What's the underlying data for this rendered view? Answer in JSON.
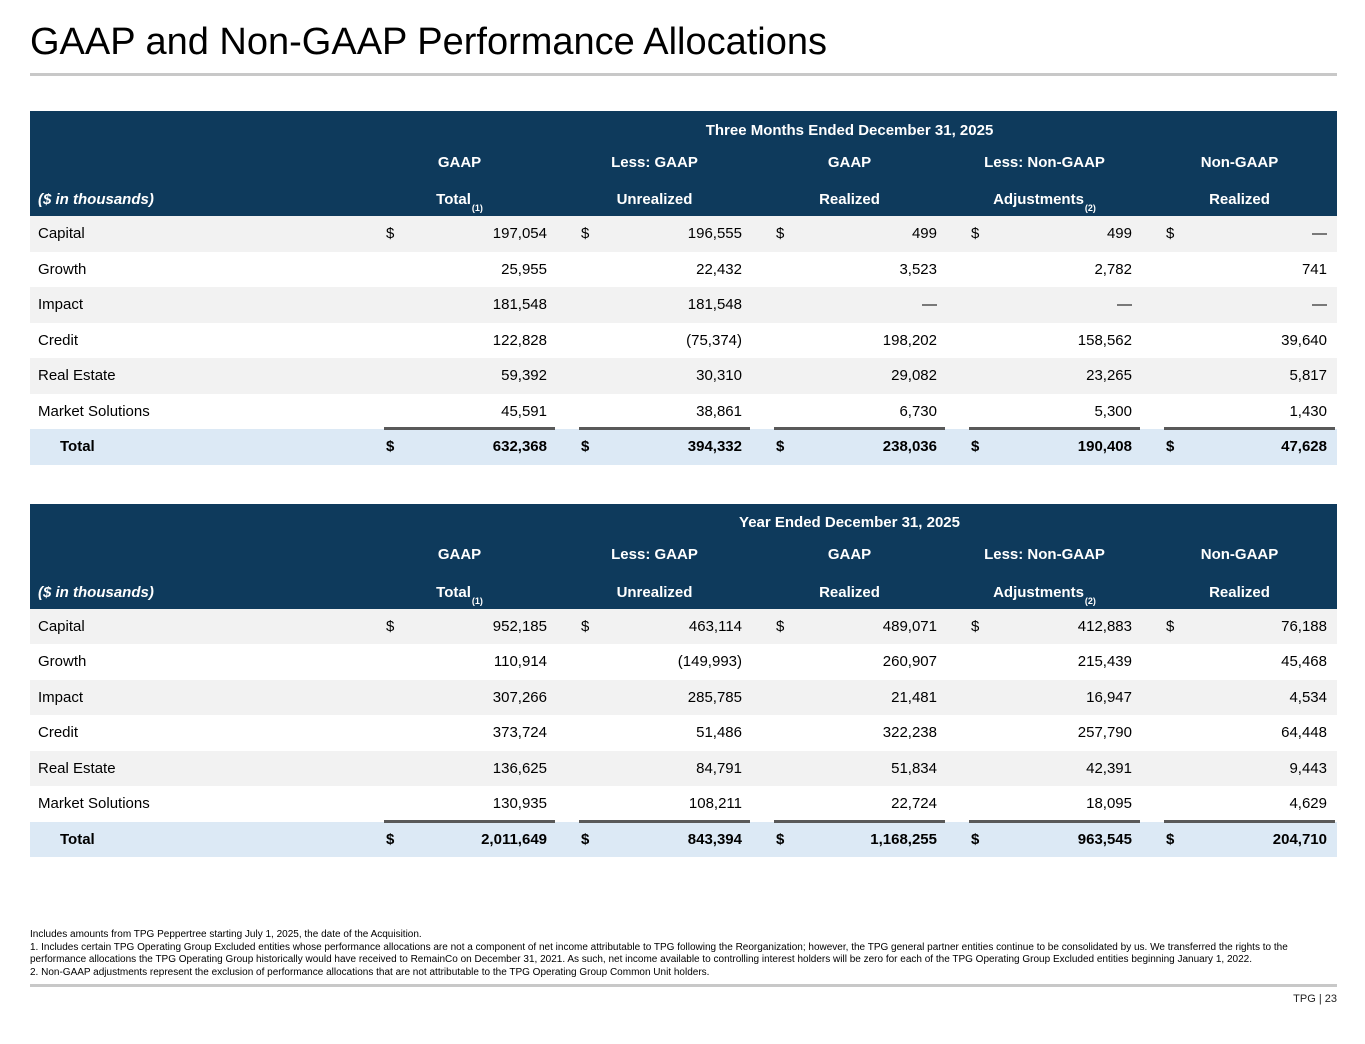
{
  "slide": {
    "title": "GAAP and Non-GAAP Performance Allocations",
    "page_label": "TPG | 23"
  },
  "theme": {
    "header_bg": "#0e3a5c",
    "total_row_bg": "#dce9f5",
    "alt_row_bg": "#f2f2f2",
    "rule_gray": "#c8c8c8",
    "sum_rule": "#595959"
  },
  "columns": {
    "label_header": "($ in thousands)",
    "groups": [
      {
        "line1": "GAAP",
        "line2": "Total",
        "sup": "(1)"
      },
      {
        "line1": "Less: GAAP",
        "line2": "Unrealized",
        "sup": ""
      },
      {
        "line1": "GAAP",
        "line2": "Realized",
        "sup": ""
      },
      {
        "line1": "Less: Non-GAAP",
        "line2": "Adjustments",
        "sup": "(2)"
      },
      {
        "line1": "Non-GAAP",
        "line2": "Realized",
        "sup": ""
      }
    ]
  },
  "tables": [
    {
      "period": "Three Months Ended December 31, 2025",
      "rows": [
        {
          "label": "Capital",
          "dollar": true,
          "values": [
            "197,054",
            "196,555",
            "499",
            "499",
            "—"
          ]
        },
        {
          "label": "Growth",
          "dollar": false,
          "values": [
            "25,955",
            "22,432",
            "3,523",
            "2,782",
            "741"
          ]
        },
        {
          "label": "Impact",
          "dollar": false,
          "values": [
            "181,548",
            "181,548",
            "—",
            "—",
            "—"
          ]
        },
        {
          "label": "Credit",
          "dollar": false,
          "values": [
            "122,828",
            "(75,374)",
            "198,202",
            "158,562",
            "39,640"
          ]
        },
        {
          "label": "Real Estate",
          "dollar": false,
          "values": [
            "59,392",
            "30,310",
            "29,082",
            "23,265",
            "5,817"
          ]
        },
        {
          "label": "Market Solutions",
          "dollar": false,
          "values": [
            "45,591",
            "38,861",
            "6,730",
            "5,300",
            "1,430"
          ]
        }
      ],
      "total": {
        "label": "Total",
        "dollar": true,
        "values": [
          "632,368",
          "394,332",
          "238,036",
          "190,408",
          "47,628"
        ]
      }
    },
    {
      "period": "Year Ended December 31, 2025",
      "rows": [
        {
          "label": "Capital",
          "dollar": true,
          "values": [
            "952,185",
            "463,114",
            "489,071",
            "412,883",
            "76,188"
          ]
        },
        {
          "label": "Growth",
          "dollar": false,
          "values": [
            "110,914",
            "(149,993)",
            "260,907",
            "215,439",
            "45,468"
          ]
        },
        {
          "label": "Impact",
          "dollar": false,
          "values": [
            "307,266",
            "285,785",
            "21,481",
            "16,947",
            "4,534"
          ]
        },
        {
          "label": "Credit",
          "dollar": false,
          "values": [
            "373,724",
            "51,486",
            "322,238",
            "257,790",
            "64,448"
          ]
        },
        {
          "label": "Real Estate",
          "dollar": false,
          "values": [
            "136,625",
            "84,791",
            "51,834",
            "42,391",
            "9,443"
          ]
        },
        {
          "label": "Market Solutions",
          "dollar": false,
          "values": [
            "130,935",
            "108,211",
            "22,724",
            "18,095",
            "4,629"
          ]
        }
      ],
      "total": {
        "label": "Total",
        "dollar": true,
        "values": [
          "2,011,649",
          "843,394",
          "1,168,255",
          "963,545",
          "204,710"
        ]
      }
    }
  ],
  "footnotes": [
    "Includes amounts from TPG Peppertree starting July 1, 2025, the date of the Acquisition.",
    "1. Includes certain TPG Operating Group Excluded entities whose performance allocations are not a component of net income attributable to TPG following the Reorganization; however, the TPG general partner entities continue to be consolidated by us. We transferred the rights to the performance allocations the TPG Operating Group historically would have received to RemainCo on December 31, 2021. As such, net income available to controlling interest holders will be zero for each of the TPG Operating Group Excluded entities beginning January 1, 2022.",
    "2. Non-GAAP adjustments represent the exclusion of performance allocations that are not attributable to the TPG Operating Group Common Unit holders."
  ]
}
